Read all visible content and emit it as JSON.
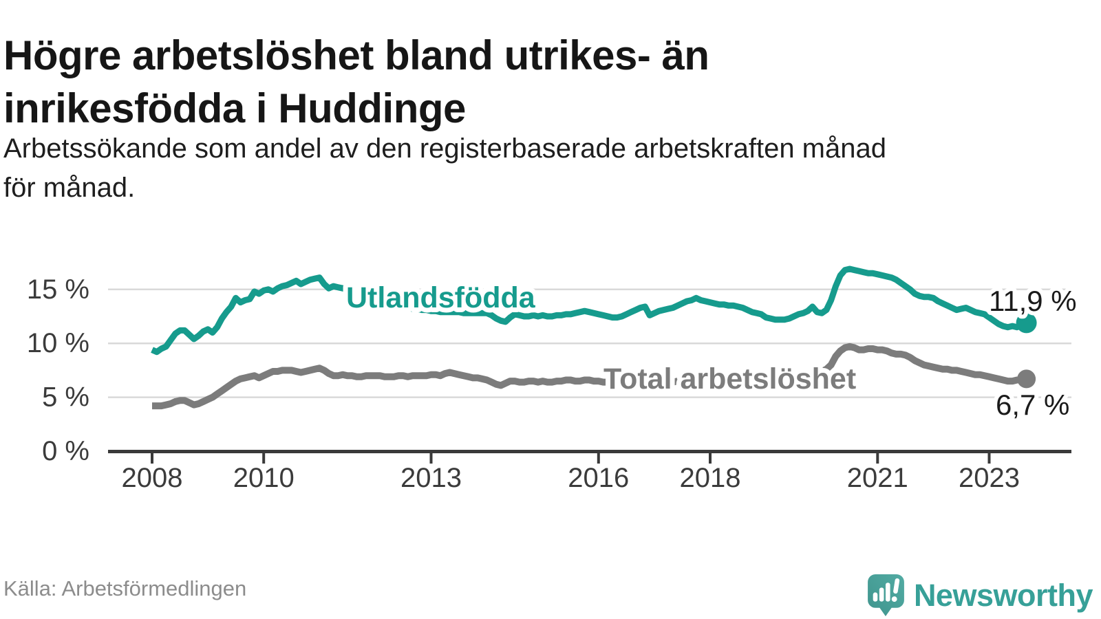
{
  "header": {
    "title_lines": [
      "Högre arbetslöshet bland utrikes- än",
      "inrikesfödda i Huddinge"
    ],
    "subtitle_lines": [
      "Arbetssökande som andel av den registerbaserade arbetskraften månad",
      "för månad."
    ]
  },
  "footer": {
    "source": "Källa: Arbetsförmedlingen",
    "logo_text": "Newsworthy"
  },
  "colors": {
    "series_foreign_born": "#169b8d",
    "series_total": "#7c7c7c",
    "value_label": "#1a1a1a",
    "axis": "#3a3a3a",
    "grid": "#d9d9d9",
    "tick_text": "#3b3b3b",
    "logo_teal": "#37a098"
  },
  "chart_data": {
    "type": "line",
    "title": "Högre arbetslöshet bland utrikes- än inrikesfödda i Huddinge",
    "subtitle": "Arbetssökande som andel av den registerbaserade arbetskraften månad för månad.",
    "frequency": "monthly",
    "x_start": "2008-01",
    "x_end": "2023-09",
    "ylim": [
      0,
      17.5
    ],
    "grid": "horizontal",
    "x_ticks": [
      2008,
      2010,
      2013,
      2016,
      2018,
      2021,
      2023
    ],
    "y_ticks": [
      {
        "value": 0,
        "label": "0 %"
      },
      {
        "value": 5,
        "label": "5 %"
      },
      {
        "value": 10,
        "label": "10 %"
      },
      {
        "value": 15,
        "label": "15 %"
      }
    ],
    "y_gridlines": [
      5,
      10,
      15
    ],
    "series": [
      {
        "name": "Utlandsfödda",
        "color": "#169b8d",
        "end_value": 11.9,
        "end_value_label": "11,9 %",
        "values": [
          9.4,
          9.2,
          9.5,
          9.7,
          10.3,
          10.9,
          11.2,
          11.2,
          10.8,
          10.4,
          10.7,
          11.1,
          11.3,
          11.0,
          11.5,
          12.3,
          12.9,
          13.4,
          14.2,
          13.8,
          14.0,
          14.1,
          14.8,
          14.6,
          14.9,
          15.0,
          14.8,
          15.1,
          15.3,
          15.4,
          15.6,
          15.8,
          15.5,
          15.7,
          15.9,
          16.0,
          16.1,
          15.5,
          15.1,
          15.3,
          15.2,
          15.1,
          15.0,
          14.8,
          14.6,
          14.4,
          14.2,
          14.0,
          13.9,
          13.8,
          13.7,
          13.6,
          13.5,
          13.4,
          13.4,
          13.3,
          13.2,
          13.2,
          13.1,
          13.1,
          13.0,
          13.0,
          12.9,
          12.9,
          12.9,
          12.9,
          12.9,
          12.8,
          12.8,
          12.8,
          12.8,
          12.8,
          12.8,
          12.6,
          12.3,
          12.1,
          12.0,
          12.4,
          12.7,
          12.6,
          12.5,
          12.5,
          12.6,
          12.5,
          12.6,
          12.5,
          12.5,
          12.6,
          12.6,
          12.7,
          12.7,
          12.8,
          12.9,
          13.0,
          12.9,
          12.8,
          12.7,
          12.6,
          12.5,
          12.4,
          12.4,
          12.5,
          12.7,
          12.9,
          13.1,
          13.3,
          13.4,
          12.6,
          12.8,
          13.0,
          13.1,
          13.2,
          13.3,
          13.5,
          13.7,
          13.9,
          14.0,
          14.2,
          14.0,
          13.9,
          13.8,
          13.7,
          13.6,
          13.6,
          13.5,
          13.5,
          13.4,
          13.3,
          13.1,
          12.9,
          12.8,
          12.7,
          12.4,
          12.3,
          12.2,
          12.2,
          12.2,
          12.3,
          12.5,
          12.7,
          12.8,
          13.0,
          13.4,
          12.9,
          12.8,
          13.1,
          14.0,
          15.3,
          16.3,
          16.8,
          16.9,
          16.8,
          16.7,
          16.6,
          16.5,
          16.5,
          16.4,
          16.3,
          16.2,
          16.1,
          15.9,
          15.6,
          15.3,
          15.0,
          14.6,
          14.4,
          14.3,
          14.3,
          14.2,
          13.9,
          13.7,
          13.5,
          13.3,
          13.1,
          13.2,
          13.3,
          13.1,
          12.9,
          12.8,
          12.7,
          12.4,
          12.1,
          11.8,
          11.6,
          11.5,
          11.6,
          11.5,
          11.7,
          11.9
        ]
      },
      {
        "name": "Total arbetslöshet",
        "color": "#7c7c7c",
        "end_value": 6.7,
        "end_value_label": "6,7 %",
        "values": [
          4.2,
          4.2,
          4.2,
          4.3,
          4.4,
          4.6,
          4.7,
          4.7,
          4.5,
          4.3,
          4.4,
          4.6,
          4.8,
          5.0,
          5.3,
          5.6,
          5.9,
          6.2,
          6.5,
          6.7,
          6.8,
          6.9,
          7.0,
          6.8,
          7.0,
          7.2,
          7.4,
          7.4,
          7.5,
          7.5,
          7.5,
          7.4,
          7.3,
          7.4,
          7.5,
          7.6,
          7.7,
          7.5,
          7.2,
          7.0,
          7.0,
          7.1,
          7.0,
          7.0,
          6.9,
          6.9,
          7.0,
          7.0,
          7.0,
          7.0,
          6.9,
          6.9,
          6.9,
          7.0,
          7.0,
          6.9,
          7.0,
          7.0,
          7.0,
          7.0,
          7.1,
          7.1,
          7.0,
          7.2,
          7.3,
          7.2,
          7.1,
          7.0,
          6.9,
          6.8,
          6.8,
          6.7,
          6.6,
          6.4,
          6.2,
          6.1,
          6.3,
          6.5,
          6.5,
          6.4,
          6.4,
          6.5,
          6.5,
          6.4,
          6.5,
          6.4,
          6.4,
          6.5,
          6.5,
          6.6,
          6.6,
          6.5,
          6.5,
          6.6,
          6.6,
          6.5,
          6.5,
          6.4,
          6.4,
          6.3,
          6.3,
          6.4,
          6.5,
          6.4,
          6.4,
          6.4,
          6.5,
          6.5,
          6.5,
          6.4,
          6.4,
          6.4,
          6.4,
          6.5,
          6.6,
          6.5,
          6.5,
          6.5,
          6.6,
          6.6,
          6.6,
          6.5,
          6.4,
          6.4,
          6.3,
          6.4,
          6.5,
          6.4,
          6.4,
          6.4,
          6.5,
          6.5,
          6.6,
          6.6,
          6.6,
          6.7,
          6.7,
          6.8,
          7.0,
          7.0,
          7.0,
          7.1,
          7.2,
          7.2,
          7.4,
          7.6,
          8.0,
          8.8,
          9.3,
          9.6,
          9.7,
          9.6,
          9.4,
          9.4,
          9.5,
          9.5,
          9.4,
          9.4,
          9.3,
          9.1,
          9.0,
          9.0,
          8.9,
          8.7,
          8.4,
          8.2,
          8.0,
          7.9,
          7.8,
          7.7,
          7.6,
          7.6,
          7.5,
          7.5,
          7.4,
          7.3,
          7.2,
          7.1,
          7.1,
          7.0,
          6.9,
          6.8,
          6.7,
          6.6,
          6.5,
          6.5,
          6.6,
          6.6,
          6.7
        ]
      }
    ]
  }
}
